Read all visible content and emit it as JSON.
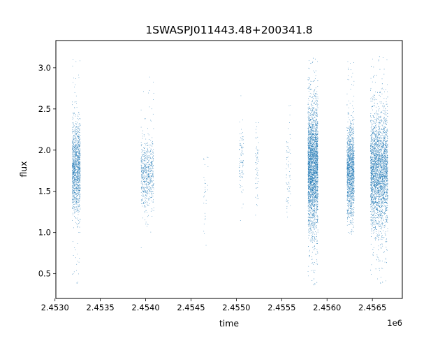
{
  "chart_data": {
    "type": "scatter",
    "title": "1SWASPJ011443.48+200341.8",
    "xlabel": "time",
    "ylabel": "flux",
    "x_offset_label": "1e6",
    "xlim": [
      2.45301,
      2.45683
    ],
    "ylim": [
      0.2,
      3.33
    ],
    "x_ticks": [
      2.453,
      2.4535,
      2.454,
      2.4545,
      2.455,
      2.4555,
      2.456,
      2.4565
    ],
    "x_tick_labels": [
      "2.4530",
      "2.4535",
      "2.4540",
      "2.4545",
      "2.4550",
      "2.4555",
      "2.4560",
      "2.4565"
    ],
    "y_ticks": [
      0.5,
      1.0,
      1.5,
      2.0,
      2.5,
      3.0
    ],
    "y_tick_labels": [
      "0.5",
      "1.0",
      "1.5",
      "2.0",
      "2.5",
      "3.0"
    ],
    "grid": false,
    "marker_color": "#1f77b4",
    "clusters": [
      {
        "x_range": [
          2.45319,
          2.45328
        ],
        "y_center": 1.78,
        "y_spread": 0.27,
        "y_min": 0.35,
        "y_max": 3.16,
        "count": 1300
      },
      {
        "x_range": [
          2.45395,
          2.45409
        ],
        "y_center": 1.72,
        "y_spread": 0.2,
        "y_min": 0.64,
        "y_max": 3.16,
        "count": 650
      },
      {
        "x_range": [
          2.45464,
          2.45469
        ],
        "y_center": 1.4,
        "y_spread": 0.45,
        "y_min": 0.4,
        "y_max": 1.97,
        "count": 30
      },
      {
        "x_range": [
          2.45503,
          2.45508
        ],
        "y_center": 1.9,
        "y_spread": 0.28,
        "y_min": 1.02,
        "y_max": 2.73,
        "count": 90
      },
      {
        "x_range": [
          2.45521,
          2.45525
        ],
        "y_center": 1.85,
        "y_spread": 0.28,
        "y_min": 1.2,
        "y_max": 2.35,
        "count": 60
      },
      {
        "x_range": [
          2.45555,
          2.4556
        ],
        "y_center": 1.7,
        "y_spread": 0.28,
        "y_min": 1.1,
        "y_max": 2.55,
        "count": 70
      },
      {
        "x_range": [
          2.45579,
          2.4559
        ],
        "y_center": 1.8,
        "y_spread": 0.38,
        "y_min": 0.33,
        "y_max": 3.15,
        "count": 3200
      },
      {
        "x_range": [
          2.45622,
          2.4563
        ],
        "y_center": 1.75,
        "y_spread": 0.28,
        "y_min": 0.98,
        "y_max": 3.12,
        "count": 1400
      },
      {
        "x_range": [
          2.45648,
          2.45667
        ],
        "y_center": 1.75,
        "y_spread": 0.35,
        "y_min": 0.35,
        "y_max": 3.17,
        "count": 3400
      }
    ]
  }
}
